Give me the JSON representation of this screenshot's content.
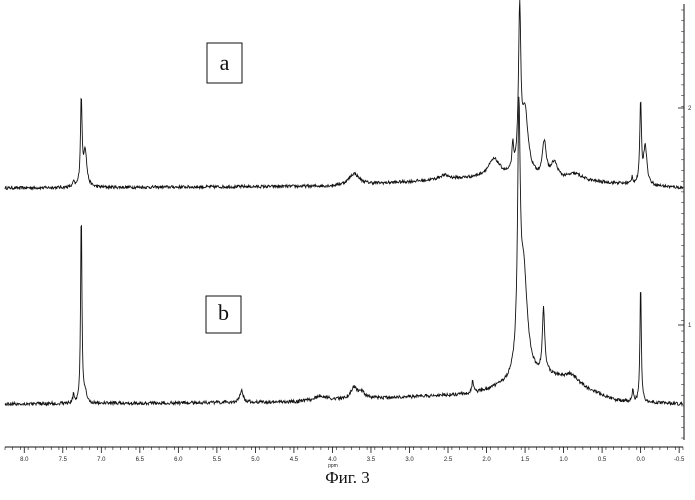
{
  "figure": {
    "caption": "Фиг. 3"
  },
  "chart_data": {
    "type": "line",
    "xlabel": "ppm",
    "xlim": [
      8.25,
      -0.55
    ],
    "x_reversed": true,
    "x_ticks": [
      8.0,
      7.5,
      7.0,
      6.5,
      6.0,
      5.5,
      5.0,
      4.5,
      4.0,
      3.5,
      3.0,
      2.5,
      2.0,
      1.5,
      1.0,
      0.5,
      0.0,
      -0.5
    ],
    "x_tick_labels": [
      "8.0",
      "7.5",
      "7.0",
      "6.5",
      "6.0",
      "5.5",
      "5.0",
      "4.5",
      "4.0",
      "3.5",
      "3.0",
      "2.5",
      "2.0",
      "1.5",
      "1.0",
      "0.5",
      "0.0",
      "-0.5"
    ],
    "right_axis_labels": [
      "2",
      "1"
    ],
    "grid": false,
    "series": [
      {
        "name": "a",
        "baseline": 0.0,
        "tilt": [
          [
            8.25,
            0.0
          ],
          [
            4.0,
            0.02
          ],
          [
            2.0,
            0.12
          ],
          [
            0.3,
            0.05
          ],
          [
            -0.55,
            0.0
          ]
        ],
        "peaks": [
          {
            "x": 7.26,
            "height": 1.0,
            "width": 0.012
          },
          {
            "x": 7.21,
            "height": 0.42,
            "width": 0.025
          },
          {
            "x": 7.36,
            "height": 0.06,
            "width": 0.01
          },
          {
            "x": 3.72,
            "height": 0.13,
            "width": 0.08
          },
          {
            "x": 2.55,
            "height": 0.05,
            "width": 0.08
          },
          {
            "x": 1.9,
            "height": 0.2,
            "width": 0.09
          },
          {
            "x": 1.66,
            "height": 0.3,
            "width": 0.012
          },
          {
            "x": 1.57,
            "height": 1.8,
            "width": 0.018
          },
          {
            "x": 1.5,
            "height": 0.72,
            "width": 0.05
          },
          {
            "x": 1.25,
            "height": 0.4,
            "width": 0.03
          },
          {
            "x": 1.12,
            "height": 0.18,
            "width": 0.05
          },
          {
            "x": 0.85,
            "height": 0.08,
            "width": 0.12
          },
          {
            "x": 0.0,
            "height": 0.95,
            "width": 0.012
          },
          {
            "x": -0.06,
            "height": 0.45,
            "width": 0.025
          },
          {
            "x": 0.11,
            "height": 0.08,
            "width": 0.01
          }
        ]
      },
      {
        "name": "b",
        "baseline": 0.0,
        "tilt": [
          [
            8.25,
            0.0
          ],
          [
            4.5,
            0.02
          ],
          [
            2.2,
            0.1
          ],
          [
            1.2,
            0.28
          ],
          [
            0.3,
            0.03
          ],
          [
            -0.55,
            0.0
          ]
        ],
        "peaks": [
          {
            "x": 7.26,
            "height": 2.0,
            "width": 0.01
          },
          {
            "x": 7.21,
            "height": 0.1,
            "width": 0.02
          },
          {
            "x": 7.36,
            "height": 0.1,
            "width": 0.01
          },
          {
            "x": 5.18,
            "height": 0.12,
            "width": 0.025
          },
          {
            "x": 4.15,
            "height": 0.05,
            "width": 0.1
          },
          {
            "x": 3.72,
            "height": 0.12,
            "width": 0.05
          },
          {
            "x": 3.62,
            "height": 0.07,
            "width": 0.04
          },
          {
            "x": 2.18,
            "height": 0.14,
            "width": 0.012
          },
          {
            "x": 1.58,
            "height": 2.4,
            "width": 0.02
          },
          {
            "x": 1.52,
            "height": 1.1,
            "width": 0.06
          },
          {
            "x": 1.26,
            "height": 0.65,
            "width": 0.018
          },
          {
            "x": 0.9,
            "height": 0.1,
            "width": 0.12
          },
          {
            "x": 0.0,
            "height": 1.25,
            "width": 0.01
          },
          {
            "x": 0.1,
            "height": 0.12,
            "width": 0.01
          }
        ]
      }
    ]
  }
}
